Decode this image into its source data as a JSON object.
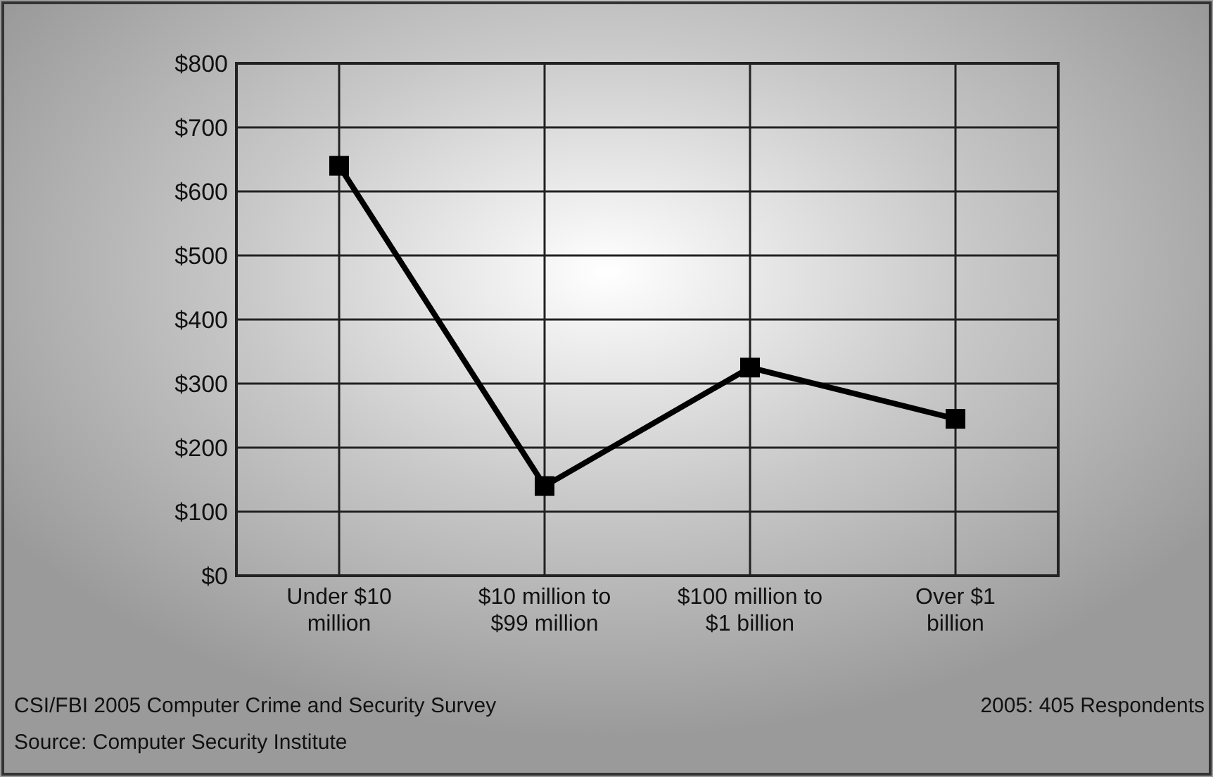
{
  "chart_data": {
    "type": "line",
    "categories": [
      "Under $10 million",
      "$10 million to $99 million",
      "$100 million to $1 billion",
      "Over $1 billion"
    ],
    "series": [
      {
        "color": "#000000",
        "values": [
          640,
          140,
          325,
          245
        ]
      }
    ],
    "ylim": [
      0,
      800
    ],
    "yticks": [
      {
        "value": 0,
        "label": "$0"
      },
      {
        "value": 100,
        "label": "$100"
      },
      {
        "value": 200,
        "label": "$200"
      },
      {
        "value": 300,
        "label": "$300"
      },
      {
        "value": 400,
        "label": "$400"
      },
      {
        "value": 500,
        "label": "$500"
      },
      {
        "value": 600,
        "label": "$600"
      },
      {
        "value": 700,
        "label": "$700"
      },
      {
        "value": 800,
        "label": "$800"
      }
    ],
    "grid": true,
    "marker": "square",
    "line_style": "solid",
    "annotations": [
      "CSI/FBI 2005 Computer Crime and Security Survey",
      "Source: Computer Security Institute",
      "2005: 405 Respondents"
    ]
  }
}
